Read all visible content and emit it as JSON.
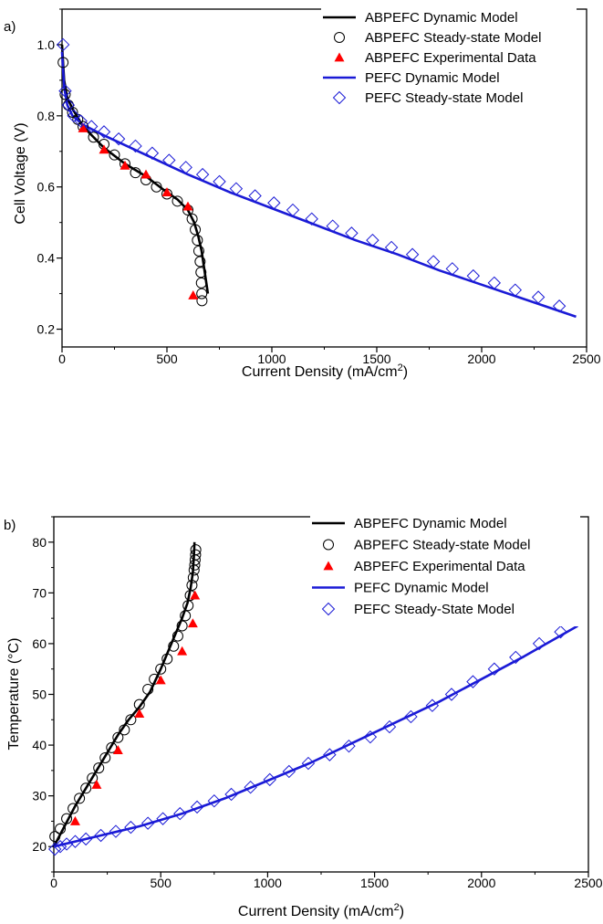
{
  "chart_data": [
    {
      "type": "line",
      "panel_label": "a)",
      "xlabel": "Current Density (mA/cm",
      "xlabel_sup": "2",
      "xlabel_end": ")",
      "ylabel": "Cell Voltage (V)",
      "xlim": [
        0,
        2500
      ],
      "ylim": [
        0.15,
        1.1
      ],
      "xticks": [
        0,
        500,
        1000,
        1500,
        2000,
        2500
      ],
      "yticks": [
        0.2,
        0.4,
        0.6,
        0.8,
        1.0
      ],
      "ytick_labels": [
        "0.2",
        "0.4",
        "0.6",
        "0.8",
        "1.0"
      ],
      "legend_position": "top-right",
      "grid": false,
      "series": [
        {
          "name": "ABPEFC Dynamic Model",
          "style": "line",
          "color": "#000000",
          "x": [
            0,
            10,
            25,
            50,
            100,
            200,
            300,
            400,
            500,
            550,
            600,
            630,
            650,
            665,
            675,
            685,
            695
          ],
          "y": [
            1.0,
            0.9,
            0.85,
            0.82,
            0.77,
            0.71,
            0.665,
            0.63,
            0.585,
            0.565,
            0.535,
            0.5,
            0.46,
            0.42,
            0.38,
            0.34,
            0.3
          ]
        },
        {
          "name": "ABPEFC Steady-state Model",
          "style": "open-circle",
          "color": "#000000",
          "x": [
            5,
            15,
            30,
            50,
            75,
            100,
            150,
            200,
            250,
            300,
            350,
            400,
            450,
            500,
            550,
            600,
            620,
            635,
            645,
            652,
            658,
            662,
            664,
            666,
            667
          ],
          "y": [
            0.95,
            0.86,
            0.83,
            0.81,
            0.79,
            0.77,
            0.74,
            0.72,
            0.69,
            0.665,
            0.64,
            0.62,
            0.6,
            0.58,
            0.56,
            0.535,
            0.51,
            0.48,
            0.45,
            0.42,
            0.39,
            0.36,
            0.33,
            0.3,
            0.28
          ]
        },
        {
          "name": "ABPEFC Experimental Data",
          "style": "filled-triangle",
          "color": "#ff0000",
          "x": [
            100,
            200,
            300,
            400,
            500,
            600,
            625
          ],
          "y": [
            0.765,
            0.705,
            0.66,
            0.635,
            0.585,
            0.545,
            0.295
          ]
        },
        {
          "name": "PEFC Dynamic Model",
          "style": "line",
          "color": "#1a1ad6",
          "x": [
            0,
            10,
            25,
            50,
            100,
            200,
            400,
            600,
            800,
            1000,
            1200,
            1400,
            1600,
            1800,
            2000,
            2200,
            2450
          ],
          "y": [
            0.98,
            0.88,
            0.83,
            0.8,
            0.775,
            0.745,
            0.69,
            0.635,
            0.585,
            0.54,
            0.495,
            0.45,
            0.41,
            0.365,
            0.325,
            0.285,
            0.235
          ]
        },
        {
          "name": "PEFC Steady-state Model",
          "style": "open-diamond",
          "color": "#1a1ad6",
          "x": [
            5,
            15,
            30,
            55,
            90,
            140,
            200,
            270,
            350,
            430,
            510,
            590,
            670,
            750,
            830,
            920,
            1010,
            1100,
            1190,
            1290,
            1380,
            1480,
            1570,
            1670,
            1770,
            1860,
            1960,
            2060,
            2160,
            2270,
            2370
          ],
          "y": [
            1.0,
            0.87,
            0.83,
            0.8,
            0.785,
            0.77,
            0.755,
            0.735,
            0.715,
            0.695,
            0.675,
            0.655,
            0.635,
            0.615,
            0.595,
            0.575,
            0.555,
            0.535,
            0.51,
            0.49,
            0.47,
            0.45,
            0.43,
            0.41,
            0.39,
            0.37,
            0.35,
            0.33,
            0.31,
            0.29,
            0.265
          ]
        }
      ]
    },
    {
      "type": "line",
      "panel_label": "b)",
      "xlabel": "Current Density (mA/cm",
      "xlabel_sup": "2",
      "xlabel_end": ")",
      "ylabel": "Temperature (°C)",
      "xlim": [
        0,
        2500
      ],
      "ylim": [
        15,
        85
      ],
      "xticks": [
        0,
        500,
        1000,
        1500,
        2000,
        2500
      ],
      "yticks": [
        20,
        30,
        40,
        50,
        60,
        70,
        80
      ],
      "ytick_labels": [
        "20",
        "30",
        "40",
        "50",
        "60",
        "70",
        "80"
      ],
      "legend_position": "top-right",
      "grid": false,
      "series": [
        {
          "name": "ABPEFC Dynamic Model",
          "style": "line",
          "color": "#000000",
          "x": [
            0,
            50,
            100,
            150,
            200,
            250,
            300,
            350,
            400,
            450,
            500,
            550,
            600,
            625,
            640,
            650,
            655,
            658
          ],
          "y": [
            20,
            24,
            28,
            31.5,
            35,
            38.5,
            42,
            45,
            47.5,
            50.5,
            55,
            60,
            65,
            68,
            71,
            74,
            77,
            80
          ]
        },
        {
          "name": "ABPEFC Steady-state Model",
          "style": "open-circle",
          "color": "#000000",
          "x": [
            5,
            30,
            60,
            90,
            120,
            150,
            180,
            210,
            240,
            270,
            300,
            330,
            360,
            400,
            440,
            470,
            500,
            530,
            560,
            580,
            600,
            615,
            628,
            638,
            646,
            652,
            656,
            659,
            661,
            663,
            664
          ],
          "y": [
            22,
            23.5,
            25.5,
            27.5,
            29.5,
            31.5,
            33.5,
            35.5,
            37.5,
            39.5,
            41.5,
            43,
            45,
            48,
            51,
            53,
            55,
            57,
            59.5,
            61.5,
            63.5,
            65.5,
            67.5,
            69.5,
            71.5,
            73,
            74.5,
            75.5,
            76.5,
            77.5,
            78.5
          ]
        },
        {
          "name": "ABPEFC Experimental Data",
          "style": "filled-triangle",
          "color": "#ff0000",
          "x": [
            100,
            200,
            300,
            400,
            500,
            600,
            650,
            660
          ],
          "y": [
            25,
            32.2,
            39,
            46.2,
            52.8,
            58.5,
            64,
            69.5
          ]
        },
        {
          "name": "PEFC Dynamic Model",
          "style": "line",
          "color": "#1a1ad6",
          "x": [
            0,
            200,
            400,
            600,
            800,
            1000,
            1200,
            1400,
            1600,
            1800,
            2000,
            2200,
            2450
          ],
          "y": [
            20,
            22,
            24,
            26.5,
            29.5,
            33,
            36.5,
            40.5,
            44.5,
            48.5,
            53,
            57.5,
            63.5
          ]
        },
        {
          "name": "PEFC Steady-State Model",
          "style": "open-diamond",
          "color": "#1a1ad6",
          "x": [
            5,
            30,
            60,
            100,
            150,
            220,
            290,
            360,
            440,
            510,
            590,
            670,
            750,
            830,
            920,
            1010,
            1100,
            1190,
            1290,
            1380,
            1480,
            1570,
            1670,
            1770,
            1860,
            1960,
            2060,
            2160,
            2270,
            2370
          ],
          "y": [
            19.5,
            20,
            20.5,
            21,
            21.5,
            22.2,
            23,
            23.8,
            24.6,
            25.5,
            26.5,
            27.8,
            29,
            30.3,
            31.7,
            33.2,
            34.8,
            36.4,
            38.1,
            39.8,
            41.6,
            43.6,
            45.6,
            47.8,
            50,
            52.5,
            55,
            57.3,
            60,
            62.3
          ]
        }
      ]
    }
  ]
}
